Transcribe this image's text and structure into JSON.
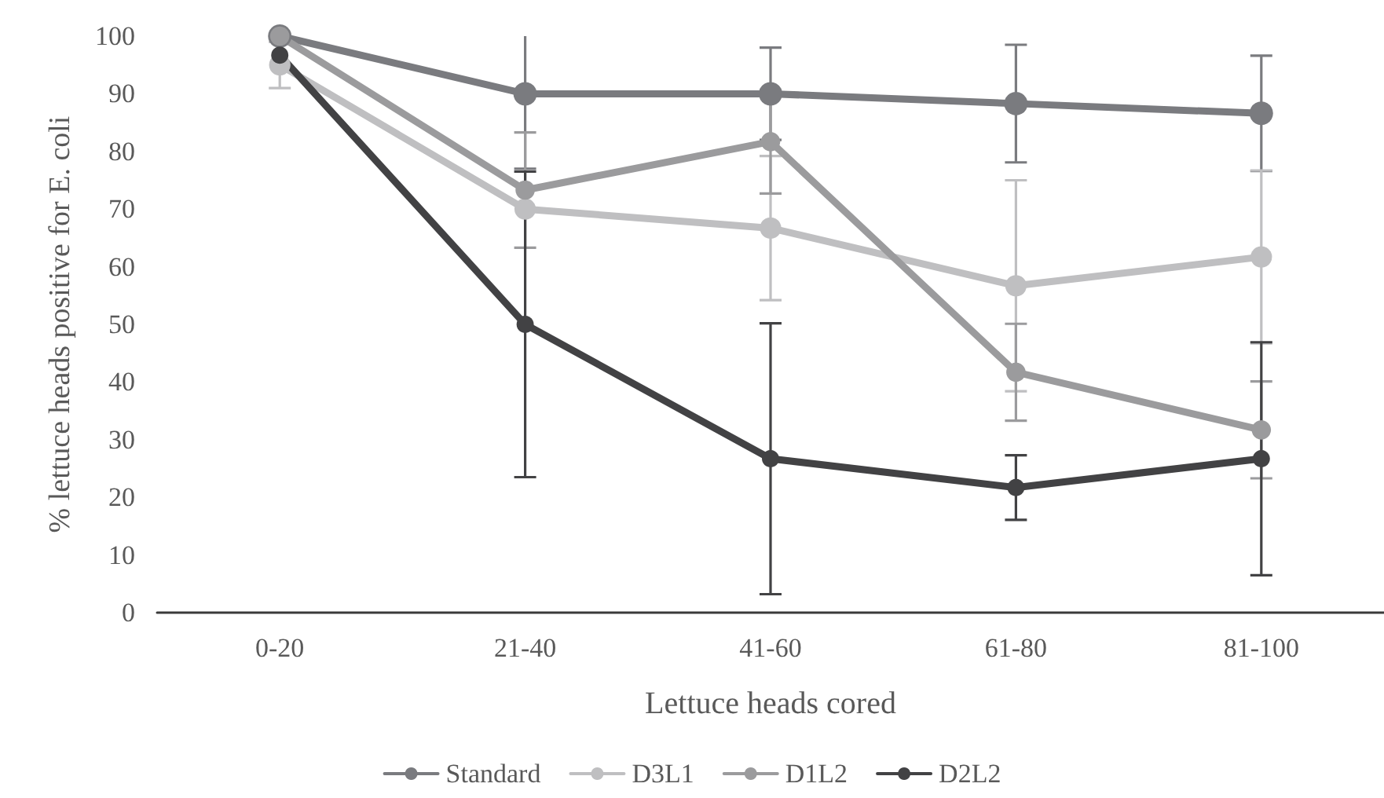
{
  "chart_data": {
    "type": "line",
    "xlabel": "Lettuce heads cored",
    "ylabel": "% lettuce heads positive for E. coli",
    "categories": [
      "0-20",
      "21-40",
      "41-60",
      "61-80",
      "81-100"
    ],
    "series": [
      {
        "name": "Standard",
        "color": "#7a7b7f",
        "values": [
          100,
          90,
          90,
          88.3,
          86.6
        ],
        "errors": [
          null,
          13,
          8,
          10.2,
          10
        ]
      },
      {
        "name": "D3L1",
        "color": "#bfbfc1",
        "values": [
          95,
          70,
          66.7,
          56.7,
          61.7
        ],
        "errors": [
          4,
          null,
          12.5,
          18.3,
          15
        ]
      },
      {
        "name": "D1L2",
        "color": "#9b9b9d",
        "values": [
          100,
          73.3,
          81.7,
          41.7,
          31.7
        ],
        "errors": [
          null,
          10,
          9,
          8.4,
          8.4
        ]
      },
      {
        "name": "D2L2",
        "color": "#424244",
        "values": [
          96.7,
          50,
          26.7,
          21.7,
          26.7
        ],
        "errors": [
          null,
          26.5,
          23.5,
          5.6,
          20.2
        ]
      }
    ],
    "ylim": [
      0,
      100
    ],
    "yticks": [
      0,
      10,
      20,
      30,
      40,
      50,
      60,
      70,
      80,
      90,
      100
    ],
    "grid": false,
    "legend": "bottom",
    "marker": "circle",
    "line_style": "solid"
  }
}
